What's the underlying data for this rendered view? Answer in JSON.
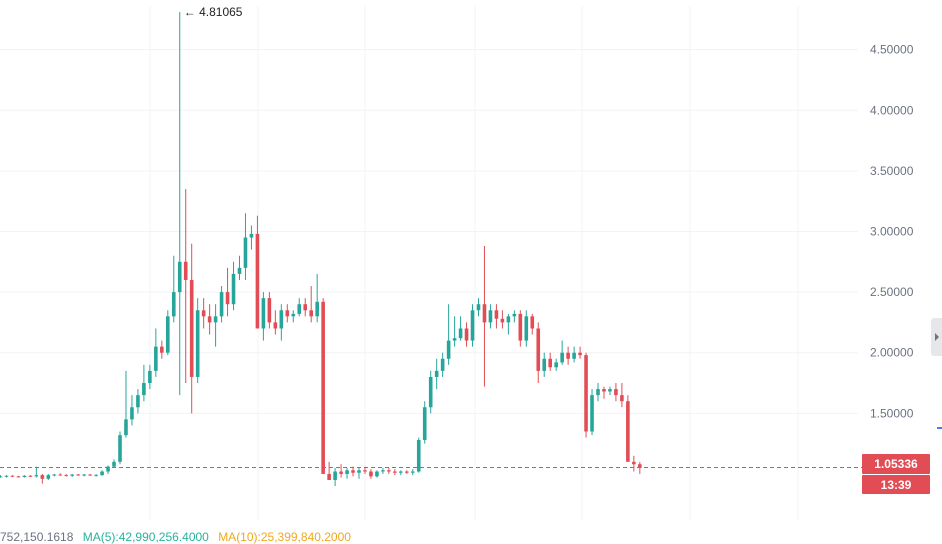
{
  "colors": {
    "up": "#26a69a",
    "down": "#e24d55",
    "grid": "#f1f3f5",
    "axis_text": "#6b7280",
    "ma5": "#26b3a0",
    "ma10": "#f0a81a"
  },
  "chart_data": {
    "type": "candlestick",
    "y_axis": {
      "ticks": [
        "4.50000",
        "4.00000",
        "3.50000",
        "3.00000",
        "2.50000",
        "2.00000",
        "1.50000"
      ],
      "tick_values": [
        4.5,
        4.0,
        3.5,
        3.0,
        2.5,
        2.0,
        1.5
      ],
      "range": [
        0.62,
        4.86
      ],
      "position": "right"
    },
    "grid": true,
    "peak_annotation": {
      "text": "← 4.81065",
      "value": 4.81065
    },
    "current_price": {
      "text": "1.05336",
      "value": 1.05336
    },
    "countdown": "13:39",
    "candles_ohlc": [
      [
        0.98,
        0.99,
        0.97,
        0.98
      ],
      [
        0.98,
        0.99,
        0.97,
        0.985
      ],
      [
        0.985,
        0.99,
        0.975,
        0.98
      ],
      [
        0.98,
        0.985,
        0.97,
        0.975
      ],
      [
        0.975,
        0.99,
        0.97,
        0.985
      ],
      [
        0.985,
        0.99,
        0.975,
        0.98
      ],
      [
        0.98,
        1.06,
        0.97,
        0.99
      ],
      [
        0.99,
        1.0,
        0.92,
        0.96
      ],
      [
        0.96,
        1.0,
        0.95,
        0.99
      ],
      [
        0.99,
        1.0,
        0.98,
        0.995
      ],
      [
        0.995,
        1.005,
        0.985,
        0.99
      ],
      [
        0.99,
        1.0,
        0.98,
        0.985
      ],
      [
        0.985,
        1.0,
        0.975,
        0.995
      ],
      [
        0.995,
        1.0,
        0.985,
        0.99
      ],
      [
        0.99,
        1.0,
        0.98,
        0.995
      ],
      [
        0.995,
        1.0,
        0.985,
        0.99
      ],
      [
        0.99,
        1.0,
        0.98,
        0.99
      ],
      [
        0.99,
        1.03,
        0.985,
        1.02
      ],
      [
        1.02,
        1.07,
        1.0,
        1.06
      ],
      [
        1.06,
        1.12,
        1.05,
        1.1
      ],
      [
        1.1,
        1.35,
        1.08,
        1.32
      ],
      [
        1.32,
        1.85,
        1.3,
        1.45
      ],
      [
        1.45,
        1.65,
        1.4,
        1.55
      ],
      [
        1.55,
        1.7,
        1.5,
        1.65
      ],
      [
        1.65,
        1.9,
        1.6,
        1.75
      ],
      [
        1.75,
        1.9,
        1.7,
        1.85
      ],
      [
        1.85,
        2.2,
        1.8,
        2.05
      ],
      [
        2.05,
        2.1,
        1.95,
        2.0
      ],
      [
        2.0,
        2.35,
        1.98,
        2.3
      ],
      [
        2.3,
        2.8,
        2.25,
        2.5
      ],
      [
        2.5,
        4.81065,
        1.65,
        2.75
      ],
      [
        2.75,
        3.35,
        1.75,
        2.6
      ],
      [
        2.6,
        2.9,
        1.5,
        1.8
      ],
      [
        1.8,
        2.45,
        1.75,
        2.35
      ],
      [
        2.35,
        2.45,
        2.2,
        2.3
      ],
      [
        2.3,
        2.4,
        2.15,
        2.25
      ],
      [
        2.25,
        2.4,
        2.05,
        2.3
      ],
      [
        2.3,
        2.55,
        2.25,
        2.5
      ],
      [
        2.5,
        2.7,
        2.3,
        2.4
      ],
      [
        2.4,
        2.75,
        2.35,
        2.65
      ],
      [
        2.65,
        2.8,
        2.6,
        2.7
      ],
      [
        2.7,
        3.15,
        2.6,
        2.95
      ],
      [
        2.95,
        3.05,
        2.85,
        2.98
      ],
      [
        2.98,
        3.13,
        2.6,
        2.2
      ],
      [
        2.2,
        2.5,
        2.1,
        2.45
      ],
      [
        2.45,
        2.5,
        2.2,
        2.25
      ],
      [
        2.25,
        2.35,
        2.15,
        2.2
      ],
      [
        2.2,
        2.4,
        2.1,
        2.35
      ],
      [
        2.35,
        2.4,
        2.25,
        2.3
      ],
      [
        2.3,
        2.35,
        2.25,
        2.32
      ],
      [
        2.32,
        2.45,
        2.3,
        2.4
      ],
      [
        2.4,
        2.45,
        2.3,
        2.35
      ],
      [
        2.35,
        2.55,
        2.25,
        2.3
      ],
      [
        2.3,
        2.65,
        2.25,
        2.42
      ],
      [
        2.42,
        2.45,
        1.0,
        1.0
      ],
      [
        1.0,
        1.1,
        0.95,
        0.95
      ],
      [
        0.95,
        1.05,
        0.9,
        1.02
      ],
      [
        1.02,
        1.08,
        0.97,
        1.0
      ],
      [
        1.0,
        1.05,
        0.96,
        1.03
      ],
      [
        1.03,
        1.06,
        0.98,
        1.01
      ],
      [
        1.01,
        1.05,
        0.96,
        1.03
      ],
      [
        1.03,
        1.06,
        1.0,
        1.02
      ],
      [
        1.02,
        1.04,
        0.96,
        0.98
      ],
      [
        0.98,
        1.03,
        0.97,
        1.02
      ],
      [
        1.02,
        1.05,
        1.0,
        1.03
      ],
      [
        1.03,
        1.05,
        1.0,
        1.02
      ],
      [
        1.02,
        1.04,
        0.99,
        1.01
      ],
      [
        1.01,
        1.03,
        0.99,
        1.02
      ],
      [
        1.02,
        1.03,
        1.0,
        1.01
      ],
      [
        1.01,
        1.04,
        0.99,
        1.02
      ],
      [
        1.02,
        1.3,
        1.01,
        1.28
      ],
      [
        1.28,
        1.6,
        1.25,
        1.55
      ],
      [
        1.55,
        1.85,
        1.5,
        1.8
      ],
      [
        1.8,
        1.95,
        1.7,
        1.85
      ],
      [
        1.85,
        2.0,
        1.8,
        1.95
      ],
      [
        1.95,
        2.4,
        1.9,
        2.1
      ],
      [
        2.1,
        2.3,
        2.05,
        2.12
      ],
      [
        2.12,
        2.3,
        2.1,
        2.2
      ],
      [
        2.2,
        2.25,
        2.05,
        2.1
      ],
      [
        2.1,
        2.4,
        2.05,
        2.35
      ],
      [
        2.35,
        2.45,
        2.3,
        2.4
      ],
      [
        2.4,
        2.88,
        1.72,
        2.25
      ],
      [
        2.25,
        2.4,
        2.2,
        2.35
      ],
      [
        2.35,
        2.4,
        2.2,
        2.28
      ],
      [
        2.28,
        2.35,
        2.2,
        2.25
      ],
      [
        2.25,
        2.32,
        2.15,
        2.3
      ],
      [
        2.3,
        2.35,
        2.25,
        2.32
      ],
      [
        2.32,
        2.35,
        2.05,
        2.1
      ],
      [
        2.1,
        2.35,
        2.05,
        2.3
      ],
      [
        2.3,
        2.32,
        2.15,
        2.2
      ],
      [
        2.2,
        2.25,
        1.75,
        1.85
      ],
      [
        1.85,
        2.0,
        1.8,
        1.95
      ],
      [
        1.95,
        2.0,
        1.85,
        1.88
      ],
      [
        1.88,
        1.95,
        1.85,
        1.92
      ],
      [
        1.92,
        2.1,
        1.9,
        2.0
      ],
      [
        2.0,
        2.05,
        1.9,
        1.95
      ],
      [
        1.95,
        2.05,
        1.92,
        2.0
      ],
      [
        2.0,
        2.05,
        1.95,
        1.98
      ],
      [
        1.98,
        2.0,
        1.3,
        1.35
      ],
      [
        1.35,
        1.7,
        1.32,
        1.65
      ],
      [
        1.65,
        1.75,
        1.6,
        1.7
      ],
      [
        1.7,
        1.72,
        1.62,
        1.68
      ],
      [
        1.68,
        1.72,
        1.65,
        1.7
      ],
      [
        1.7,
        1.75,
        1.6,
        1.65
      ],
      [
        1.65,
        1.75,
        1.55,
        1.6
      ],
      [
        1.6,
        1.65,
        1.1,
        1.1
      ],
      [
        1.1,
        1.15,
        1.02,
        1.08
      ],
      [
        1.08,
        1.1,
        1.0,
        1.05
      ]
    ]
  },
  "volume_legend": {
    "total": "752,150.1618",
    "ma5": "MA(5):42,990,256.4000",
    "ma10": "MA(10):25,399,840.2000"
  }
}
